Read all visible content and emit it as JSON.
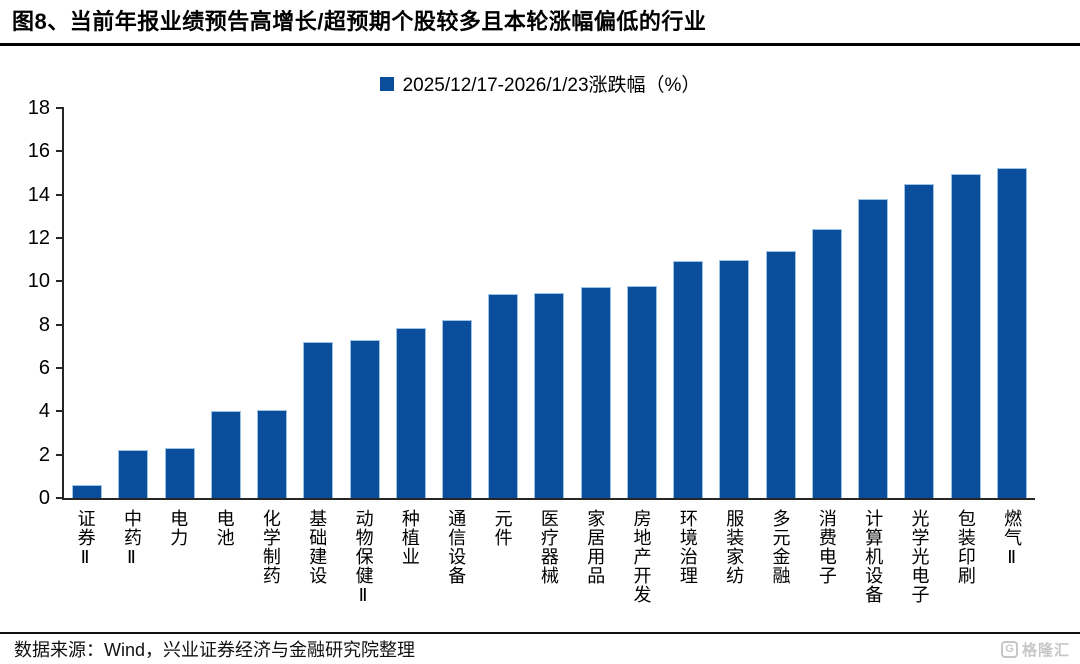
{
  "title": "图8、当前年报业绩预告高增长/超预期个股较多且本轮涨幅偏低的行业",
  "legend": {
    "label": "2025/12/17-2026/1/23涨跌幅（%）"
  },
  "footer": {
    "source": "数据来源：Wind，兴业证券经济与金融研究院整理",
    "logo_letter": "G",
    "logo_text": "格隆汇"
  },
  "colors": {
    "bar": "#0a4e9b",
    "bar_edge": "#9dc3e6",
    "axis": "#262626",
    "title_text": "#000000",
    "logo_gray": "#c7c7c7"
  },
  "chart_data": {
    "type": "bar",
    "title": "图8、当前年报业绩预告高增长/超预期个股较多且本轮涨幅偏低的行业",
    "legend_entries": [
      "2025/12/17-2026/1/23涨跌幅（%）"
    ],
    "legend_position": "top-center",
    "grid": false,
    "xlabel": "",
    "ylabel": "",
    "ylim": [
      0,
      18
    ],
    "yticks": [
      0,
      2,
      4,
      6,
      8,
      10,
      12,
      14,
      16,
      18
    ],
    "categories": [
      "证券Ⅱ",
      "中药Ⅱ",
      "电力",
      "电池",
      "化学制药",
      "基础建设",
      "动物保健Ⅱ",
      "种植业",
      "通信设备",
      "元件",
      "医疗器械",
      "家居用品",
      "房地产开发",
      "环境治理",
      "服装家纺",
      "多元金融",
      "消费电子",
      "计算机设备",
      "光学光电子",
      "包装印刷",
      "燃气Ⅱ"
    ],
    "values": [
      0.6,
      2.2,
      2.3,
      4.0,
      4.05,
      7.2,
      7.3,
      7.85,
      8.2,
      9.4,
      9.45,
      9.75,
      9.8,
      10.95,
      11.0,
      11.4,
      12.4,
      13.8,
      14.5,
      14.95,
      15.25
    ]
  }
}
